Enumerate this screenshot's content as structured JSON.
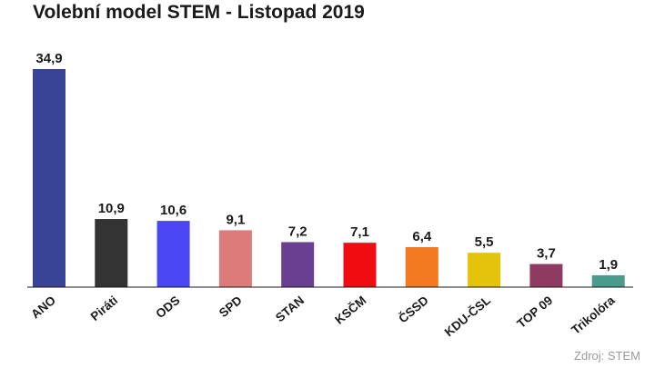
{
  "chart_data": {
    "type": "bar",
    "title": "Volební model STEM - Listopad 2019",
    "source": "Zdroj: STEM",
    "categories": [
      "ANO",
      "Piráti",
      "ODS",
      "SPD",
      "STAN",
      "KSČM",
      "ČSSD",
      "KDU-ČSL",
      "TOP 09",
      "Trikolóra"
    ],
    "values": [
      34.9,
      10.9,
      10.6,
      9.1,
      7.2,
      7.1,
      6.4,
      5.5,
      3.7,
      1.9
    ],
    "value_labels": [
      "34,9",
      "10,9",
      "10,6",
      "9,1",
      "7,2",
      "7,1",
      "6,4",
      "5,5",
      "3,7",
      "1,9"
    ],
    "colors": [
      "#3a4496",
      "#333333",
      "#4a48f5",
      "#dc7b79",
      "#6a3f92",
      "#f00c10",
      "#f47a22",
      "#e4c30b",
      "#8e3a61",
      "#4a9a8e"
    ],
    "ylim": [
      0,
      34.9
    ],
    "grid": false,
    "legend": "none"
  }
}
